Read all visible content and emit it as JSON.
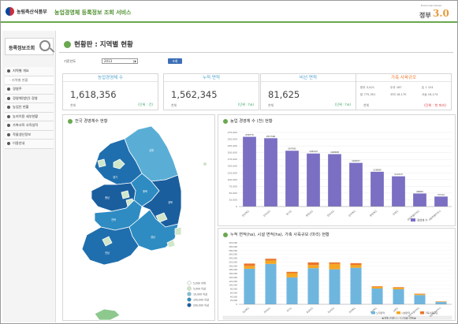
{
  "header": {
    "ministry": "농림축산식품부",
    "service_title": "농업경영체 등록정보 조회 서비스",
    "gov_small": "Tomorrow's Korea",
    "gov_text": "정부",
    "gov_num": "3.0"
  },
  "sidebar": {
    "title": "등록정보조회",
    "items": [
      {
        "label": "지역별 개요",
        "type": "main"
      },
      {
        "label": "- 지역별 현황",
        "type": "sub"
      },
      {
        "label": "경영주",
        "type": "main"
      },
      {
        "label": "경영체(법인) 경영",
        "type": "main"
      },
      {
        "label": "농업인 현황",
        "type": "main"
      },
      {
        "label": "농지이용 세부현황",
        "type": "main"
      },
      {
        "label": "가축사육 사육실적",
        "type": "main"
      },
      {
        "label": "작물생산정보",
        "type": "main"
      },
      {
        "label": "이용안내",
        "type": "main"
      }
    ]
  },
  "page": {
    "title": "현황판 : 지역별 현황",
    "filter_label": "기준년도",
    "filter_value": "2013",
    "filter_arrow": "▼",
    "search_button": "조회"
  },
  "cards": [
    {
      "header": "농업경영체 수",
      "value": "1,618,356",
      "unit_left": "천체",
      "unit_right": "(단위 : 건)"
    },
    {
      "header": "누적 면적",
      "value": "1,562,345",
      "unit_left": "천체",
      "unit_right": "(단위 : ha)"
    },
    {
      "header": "비선 면적",
      "value": "81,625",
      "unit_left": "천체",
      "unit_right": "(단위 : ha)"
    }
  ],
  "livestock_card": {
    "header": "가축 사육규모",
    "rows": [
      [
        "한우 3,421",
        "두우 187",
        "돈 1 101"
      ],
      [
        "닭 775,351",
        "오리 16,170",
        "사슴 16,174"
      ]
    ],
    "unit_left": "천체",
    "unit_right": "(단위 : 천 마리)"
  },
  "map_panel": {
    "title": "전국 경영체수 현황",
    "legend": [
      "5,000 이하",
      "5,000 이상",
      "10,000 이상",
      "100,000 이상",
      "200,000 이상"
    ],
    "legend_colors": [
      "#f2f8f0",
      "#cfe6c9",
      "#7fc3d9",
      "#2e8cc2",
      "#1a5e9e"
    ]
  },
  "bar_panel": {
    "title": "농업 경영체 수 (천) 현황",
    "legend": "경영체 수"
  },
  "stack_panel": {
    "title": "누적 면적(ha), 시설 면적(ha), 가축 사육규모 (마리) 현황",
    "legend": [
      "노지면적",
      "시설면적",
      "가축사육규모"
    ],
    "pager": "◀ 전체 (이전) 1 / 2 (다음) 전체 ▶"
  },
  "chart_data": [
    {
      "type": "bar",
      "title": "농업 경영체 수 (천) 현황",
      "categories": [
        "경상북도",
        "전라남도",
        "경기도",
        "충청남도",
        "경상남도",
        "전라북도",
        "충청북도",
        "강원도",
        "제주특별자치도",
        "세종특별자치시"
      ],
      "series": [
        {
          "name": "경영체 수",
          "values": [
            258775,
            253560,
            207091,
            196743,
            194508,
            162057,
            129085,
            112213,
            48383,
            37112
          ]
        }
      ],
      "value_labels": [
        "258775",
        "253,560",
        "207091",
        "196743",
        "194508",
        "162057",
        "129085",
        "112213",
        "48383",
        "37112"
      ],
      "y_ticks": [
        "275,000",
        "250,000",
        "225,000",
        "200,000",
        "175,000",
        "150,000",
        "125,000",
        "100,000",
        "75,000",
        "50,000",
        "25,000",
        "0"
      ],
      "ylim": [
        0,
        275000
      ],
      "legend": "bottom-right",
      "color": "#7a6fc3"
    },
    {
      "type": "bar",
      "stacked": true,
      "title": "누적 면적(ha), 시설 면적(ha), 가축 사육규모 (마리) 현황",
      "categories": [
        "경상북도",
        "전라남도",
        "경기도",
        "충청남도",
        "경상남도",
        "전라북도",
        "충청북도",
        "강원도",
        "제주특별자치도",
        "세종특별자치시"
      ],
      "series": [
        {
          "name": "노지면적",
          "values": [
            185000,
            210000,
            140000,
            188000,
            182000,
            190000,
            82000,
            78000,
            48000,
            12000
          ]
        },
        {
          "name": "시설면적",
          "values": [
            15000,
            18000,
            22000,
            16000,
            28000,
            15000,
            9000,
            8000,
            5000,
            2000
          ]
        },
        {
          "name": "가축사육규모",
          "values": [
            12000,
            9000,
            7000,
            14000,
            8000,
            9000,
            3000,
            3000,
            2000,
            1000
          ]
        }
      ],
      "y_ticks": [
        "320,000",
        "300,000",
        "280,000",
        "260,000",
        "240,000",
        "220,000",
        "200,000",
        "180,000",
        "160,000",
        "140,000",
        "120,000",
        "100,000",
        "80,000",
        "60,000",
        "40,000",
        "20,000",
        "0"
      ],
      "ylim": [
        0,
        320000
      ],
      "legend": "bottom-right",
      "colors": [
        "#6fb6df",
        "#f5a623",
        "#e9762b"
      ]
    }
  ]
}
